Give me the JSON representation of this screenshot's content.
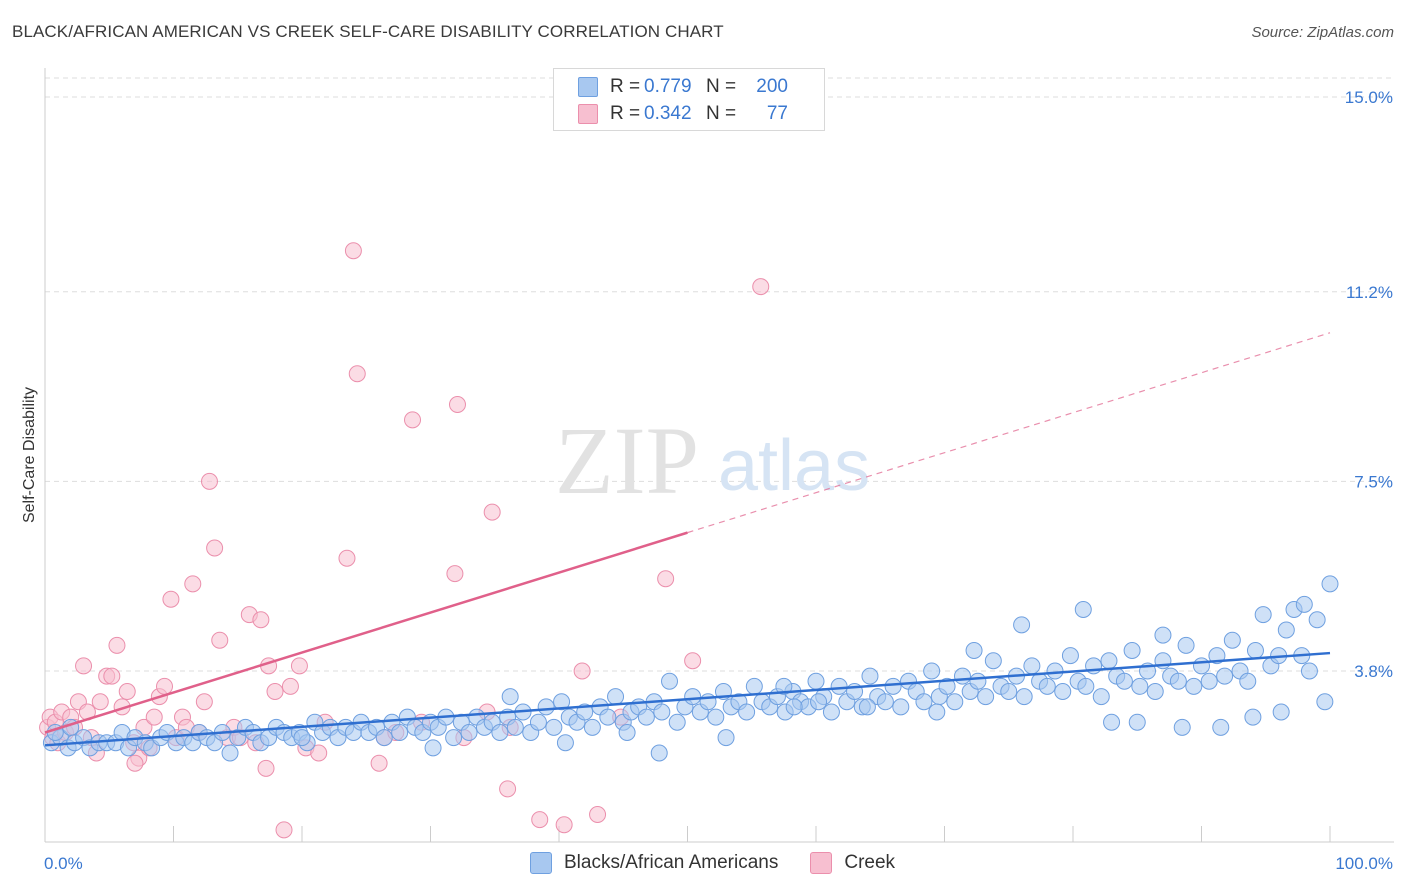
{
  "title": "BLACK/AFRICAN AMERICAN VS CREEK SELF-CARE DISABILITY CORRELATION CHART",
  "source": "Source: ZipAtlas.com",
  "watermark": {
    "zip": "ZIP",
    "atlas": "atlas"
  },
  "legend_top": {
    "rows": [
      {
        "r_label": "R =",
        "r_value": "0.779",
        "n_label": "N =",
        "n_value": "200"
      },
      {
        "r_label": "R =",
        "r_value": "0.342",
        "n_label": "N =",
        "n_value": "77"
      }
    ]
  },
  "legend_bottom": {
    "items": [
      "Blacks/African Americans",
      "Creek"
    ]
  },
  "colors": {
    "blue_fill": "#a8c8f0",
    "blue_stroke": "#6fa0e0",
    "blue_line": "#2f6fd0",
    "pink_fill": "#f7bfd0",
    "pink_stroke": "#eb8fac",
    "pink_line": "#e0608a",
    "axis_text": "#3a78d0",
    "grid": "#dddddd"
  },
  "chart_data": {
    "type": "scatter",
    "title": "BLACK/AFRICAN AMERICAN VS CREEK SELF-CARE DISABILITY CORRELATION CHART",
    "xlabel": "",
    "ylabel": "Self-Care Disability",
    "xlim": [
      0,
      100
    ],
    "ylim": [
      0,
      15.5
    ],
    "x_tick_labels": [
      "0.0%",
      "100.0%"
    ],
    "y_ticks": [
      3.8,
      7.5,
      11.2,
      15.0
    ],
    "y_tick_labels": [
      "3.8%",
      "7.5%",
      "11.2%",
      "15.0%"
    ],
    "grid": "horizontal dashed",
    "legend": "top-center",
    "series": [
      {
        "name": "Blacks/African Americans",
        "color": "#a8c8f0",
        "r": 0.779,
        "n": 200,
        "trend": {
          "x": [
            0,
            100
          ],
          "y": [
            2.35,
            4.15
          ],
          "style": "solid"
        },
        "points": [
          [
            0.5,
            2.4
          ],
          [
            1.2,
            2.5
          ],
          [
            1.8,
            2.3
          ],
          [
            2.3,
            2.4
          ],
          [
            3.0,
            2.5
          ],
          [
            3.5,
            2.3
          ],
          [
            4.2,
            2.4
          ],
          [
            4.8,
            2.4
          ],
          [
            5.5,
            2.4
          ],
          [
            6.0,
            2.6
          ],
          [
            6.5,
            2.3
          ],
          [
            7.0,
            2.5
          ],
          [
            7.8,
            2.4
          ],
          [
            8.3,
            2.3
          ],
          [
            9.0,
            2.5
          ],
          [
            9.5,
            2.6
          ],
          [
            10.2,
            2.4
          ],
          [
            10.8,
            2.5
          ],
          [
            11.5,
            2.4
          ],
          [
            12.0,
            2.6
          ],
          [
            12.6,
            2.5
          ],
          [
            13.2,
            2.4
          ],
          [
            13.8,
            2.6
          ],
          [
            14.4,
            2.2
          ],
          [
            15.0,
            2.5
          ],
          [
            15.6,
            2.7
          ],
          [
            16.2,
            2.6
          ],
          [
            16.8,
            2.4
          ],
          [
            17.4,
            2.5
          ],
          [
            18.0,
            2.7
          ],
          [
            18.6,
            2.6
          ],
          [
            19.2,
            2.5
          ],
          [
            19.8,
            2.6
          ],
          [
            20.4,
            2.4
          ],
          [
            21.0,
            2.8
          ],
          [
            21.6,
            2.6
          ],
          [
            22.2,
            2.7
          ],
          [
            22.8,
            2.5
          ],
          [
            23.4,
            2.7
          ],
          [
            24.0,
            2.6
          ],
          [
            24.6,
            2.8
          ],
          [
            25.2,
            2.6
          ],
          [
            25.8,
            2.7
          ],
          [
            26.4,
            2.5
          ],
          [
            27.0,
            2.8
          ],
          [
            27.6,
            2.6
          ],
          [
            28.2,
            2.9
          ],
          [
            28.8,
            2.7
          ],
          [
            29.4,
            2.6
          ],
          [
            30.0,
            2.8
          ],
          [
            30.6,
            2.7
          ],
          [
            31.2,
            2.9
          ],
          [
            31.8,
            2.5
          ],
          [
            32.4,
            2.8
          ],
          [
            33.0,
            2.6
          ],
          [
            33.6,
            2.9
          ],
          [
            34.2,
            2.7
          ],
          [
            34.8,
            2.8
          ],
          [
            35.4,
            2.6
          ],
          [
            36.0,
            2.9
          ],
          [
            36.6,
            2.7
          ],
          [
            37.2,
            3.0
          ],
          [
            37.8,
            2.6
          ],
          [
            38.4,
            2.8
          ],
          [
            39.0,
            3.1
          ],
          [
            39.6,
            2.7
          ],
          [
            40.2,
            3.2
          ],
          [
            40.8,
            2.9
          ],
          [
            41.4,
            2.8
          ],
          [
            42.0,
            3.0
          ],
          [
            42.6,
            2.7
          ],
          [
            43.2,
            3.1
          ],
          [
            43.8,
            2.9
          ],
          [
            44.4,
            3.3
          ],
          [
            45.0,
            2.8
          ],
          [
            45.6,
            3.0
          ],
          [
            46.2,
            3.1
          ],
          [
            46.8,
            2.9
          ],
          [
            47.4,
            3.2
          ],
          [
            48.0,
            3.0
          ],
          [
            48.6,
            3.6
          ],
          [
            49.2,
            2.8
          ],
          [
            49.8,
            3.1
          ],
          [
            50.4,
            3.3
          ],
          [
            51.0,
            3.0
          ],
          [
            51.6,
            3.2
          ],
          [
            52.2,
            2.9
          ],
          [
            52.8,
            3.4
          ],
          [
            53.4,
            3.1
          ],
          [
            54.0,
            3.2
          ],
          [
            54.6,
            3.0
          ],
          [
            55.2,
            3.5
          ],
          [
            55.8,
            3.2
          ],
          [
            56.4,
            3.1
          ],
          [
            57.0,
            3.3
          ],
          [
            57.6,
            3.0
          ],
          [
            58.2,
            3.4
          ],
          [
            58.8,
            3.2
          ],
          [
            59.4,
            3.1
          ],
          [
            60.0,
            3.6
          ],
          [
            60.6,
            3.3
          ],
          [
            61.2,
            3.0
          ],
          [
            61.8,
            3.5
          ],
          [
            62.4,
            3.2
          ],
          [
            63.0,
            3.4
          ],
          [
            63.6,
            3.1
          ],
          [
            64.2,
            3.7
          ],
          [
            64.8,
            3.3
          ],
          [
            65.4,
            3.2
          ],
          [
            66.0,
            3.5
          ],
          [
            66.6,
            3.1
          ],
          [
            67.2,
            3.6
          ],
          [
            67.8,
            3.4
          ],
          [
            68.4,
            3.2
          ],
          [
            69.0,
            3.8
          ],
          [
            69.6,
            3.3
          ],
          [
            70.2,
            3.5
          ],
          [
            70.8,
            3.2
          ],
          [
            71.4,
            3.7
          ],
          [
            72.0,
            3.4
          ],
          [
            72.6,
            3.6
          ],
          [
            73.2,
            3.3
          ],
          [
            73.8,
            4.0
          ],
          [
            74.4,
            3.5
          ],
          [
            75.0,
            3.4
          ],
          [
            75.6,
            3.7
          ],
          [
            76.2,
            3.3
          ],
          [
            76.8,
            3.9
          ],
          [
            77.4,
            3.6
          ],
          [
            78.0,
            3.5
          ],
          [
            78.6,
            3.8
          ],
          [
            79.2,
            3.4
          ],
          [
            79.8,
            4.1
          ],
          [
            80.4,
            3.6
          ],
          [
            81.0,
            3.5
          ],
          [
            81.6,
            3.9
          ],
          [
            82.2,
            3.3
          ],
          [
            82.8,
            4.0
          ],
          [
            83.4,
            3.7
          ],
          [
            84.0,
            3.6
          ],
          [
            84.6,
            4.2
          ],
          [
            85.2,
            3.5
          ],
          [
            85.8,
            3.8
          ],
          [
            86.4,
            3.4
          ],
          [
            87.0,
            4.0
          ],
          [
            87.6,
            3.7
          ],
          [
            88.2,
            3.6
          ],
          [
            88.8,
            4.3
          ],
          [
            89.4,
            3.5
          ],
          [
            90.0,
            3.9
          ],
          [
            90.6,
            3.6
          ],
          [
            91.2,
            4.1
          ],
          [
            91.8,
            3.7
          ],
          [
            92.4,
            4.4
          ],
          [
            93.0,
            3.8
          ],
          [
            93.6,
            3.6
          ],
          [
            94.2,
            4.2
          ],
          [
            94.8,
            4.9
          ],
          [
            95.4,
            3.9
          ],
          [
            96.0,
            4.1
          ],
          [
            96.6,
            4.6
          ],
          [
            97.2,
            5.0
          ],
          [
            97.8,
            4.1
          ],
          [
            98.4,
            3.8
          ],
          [
            99.0,
            4.8
          ],
          [
            99.6,
            3.2
          ],
          [
            100.0,
            5.5
          ],
          [
            0.8,
            2.6
          ],
          [
            2.0,
            2.7
          ],
          [
            30.2,
            2.3
          ],
          [
            40.5,
            2.4
          ],
          [
            47.8,
            2.2
          ],
          [
            53.0,
            2.5
          ],
          [
            57.5,
            3.5
          ],
          [
            64.0,
            3.1
          ],
          [
            69.4,
            3.0
          ],
          [
            76.0,
            4.7
          ],
          [
            83.0,
            2.8
          ],
          [
            85.0,
            2.8
          ],
          [
            94.0,
            2.9
          ],
          [
            98.0,
            5.1
          ],
          [
            96.2,
            3.0
          ],
          [
            91.5,
            2.7
          ],
          [
            88.5,
            2.7
          ],
          [
            20.0,
            2.5
          ],
          [
            36.2,
            3.3
          ],
          [
            45.3,
            2.6
          ],
          [
            58.3,
            3.1
          ],
          [
            60.2,
            3.2
          ],
          [
            72.3,
            4.2
          ],
          [
            80.8,
            5.0
          ],
          [
            87.0,
            4.5
          ]
        ]
      },
      {
        "name": "Creek",
        "color": "#f7bfd0",
        "r": 0.342,
        "n": 77,
        "trend": {
          "x": [
            0,
            50
          ],
          "y": [
            2.6,
            6.5
          ],
          "dashed_to": [
            100,
            10.4
          ]
        },
        "points": [
          [
            0.2,
            2.7
          ],
          [
            0.4,
            2.9
          ],
          [
            0.6,
            2.5
          ],
          [
            0.8,
            2.8
          ],
          [
            1.0,
            2.4
          ],
          [
            1.3,
            3.0
          ],
          [
            1.6,
            2.6
          ],
          [
            2.0,
            2.9
          ],
          [
            2.3,
            2.7
          ],
          [
            2.6,
            3.2
          ],
          [
            3.0,
            3.9
          ],
          [
            3.3,
            3.0
          ],
          [
            3.6,
            2.5
          ],
          [
            4.0,
            2.2
          ],
          [
            4.3,
            3.2
          ],
          [
            4.8,
            3.7
          ],
          [
            5.2,
            3.7
          ],
          [
            5.6,
            4.3
          ],
          [
            6.0,
            3.1
          ],
          [
            6.4,
            3.4
          ],
          [
            6.9,
            2.4
          ],
          [
            7.3,
            2.1
          ],
          [
            7.7,
            2.7
          ],
          [
            8.1,
            2.3
          ],
          [
            8.5,
            2.9
          ],
          [
            8.9,
            3.3
          ],
          [
            9.3,
            3.5
          ],
          [
            9.8,
            5.2
          ],
          [
            10.2,
            2.5
          ],
          [
            10.7,
            2.9
          ],
          [
            11.0,
            2.7
          ],
          [
            11.5,
            5.5
          ],
          [
            12.0,
            2.6
          ],
          [
            12.4,
            3.2
          ],
          [
            12.8,
            7.5
          ],
          [
            13.2,
            6.2
          ],
          [
            13.6,
            4.4
          ],
          [
            14.2,
            2.5
          ],
          [
            14.7,
            2.7
          ],
          [
            15.2,
            2.5
          ],
          [
            15.9,
            4.9
          ],
          [
            16.4,
            2.4
          ],
          [
            16.8,
            4.8
          ],
          [
            17.4,
            3.9
          ],
          [
            17.9,
            3.4
          ],
          [
            18.6,
            0.7
          ],
          [
            19.1,
            3.5
          ],
          [
            19.8,
            3.9
          ],
          [
            20.3,
            2.3
          ],
          [
            21.3,
            2.2
          ],
          [
            21.8,
            2.8
          ],
          [
            23.5,
            6.0
          ],
          [
            24.0,
            12.0
          ],
          [
            24.3,
            9.6
          ],
          [
            26.4,
            2.5
          ],
          [
            27.3,
            2.6
          ],
          [
            28.6,
            8.7
          ],
          [
            29.3,
            2.8
          ],
          [
            31.9,
            5.7
          ],
          [
            32.1,
            9.0
          ],
          [
            32.6,
            2.5
          ],
          [
            34.4,
            3.0
          ],
          [
            34.8,
            6.9
          ],
          [
            36.2,
            2.7
          ],
          [
            38.5,
            0.9
          ],
          [
            40.4,
            0.8
          ],
          [
            41.8,
            3.8
          ],
          [
            43.0,
            1.0
          ],
          [
            44.8,
            2.9
          ],
          [
            48.3,
            5.6
          ],
          [
            50.4,
            4.0
          ],
          [
            55.7,
            11.3
          ],
          [
            7.0,
            2.0
          ],
          [
            17.2,
            1.9
          ],
          [
            26.0,
            2.0
          ],
          [
            36.0,
            1.5
          ]
        ]
      }
    ]
  }
}
